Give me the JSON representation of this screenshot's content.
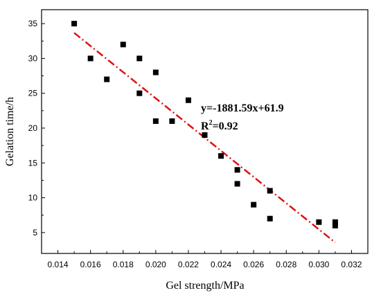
{
  "chart_data": {
    "type": "scatter",
    "xlabel": "Gel strength/MPa",
    "ylabel": "Gelation time/h",
    "xlim": [
      0.013,
      0.033
    ],
    "ylim": [
      2,
      37
    ],
    "x_ticks": [
      0.014,
      0.016,
      0.018,
      0.02,
      0.022,
      0.024,
      0.026,
      0.028,
      0.03,
      0.032
    ],
    "x_tick_labels": [
      "0.014",
      "0.016",
      "0.018",
      "0.020",
      "0.022",
      "0.024",
      "0.026",
      "0.028",
      "0.030",
      "0.032"
    ],
    "y_ticks": [
      5,
      10,
      15,
      20,
      25,
      30,
      35
    ],
    "y_tick_labels": [
      "5",
      "10",
      "15",
      "20",
      "25",
      "30",
      "35"
    ],
    "grid": false,
    "legend": "none",
    "series": [
      {
        "points": [
          [
            0.015,
            35
          ],
          [
            0.016,
            30
          ],
          [
            0.017,
            27
          ],
          [
            0.018,
            32
          ],
          [
            0.019,
            30
          ],
          [
            0.019,
            25
          ],
          [
            0.02,
            28
          ],
          [
            0.02,
            21
          ],
          [
            0.021,
            21
          ],
          [
            0.022,
            24
          ],
          [
            0.023,
            19
          ],
          [
            0.024,
            16
          ],
          [
            0.025,
            14
          ],
          [
            0.025,
            12
          ],
          [
            0.026,
            9
          ],
          [
            0.027,
            11
          ],
          [
            0.027,
            7
          ],
          [
            0.03,
            6.5
          ],
          [
            0.031,
            6.5
          ],
          [
            0.031,
            6
          ]
        ],
        "marker": "square",
        "color": "#000000"
      }
    ],
    "fit_line": {
      "slope": -1881.59,
      "intercept": 61.9,
      "x_range": [
        0.015,
        0.031
      ],
      "style": "dash-dot",
      "color": "#dd1111"
    },
    "annotations": {
      "equation": "y=-1881.59x+61.9",
      "r2_prefix": "R",
      "r2_sup": "2",
      "r2_value": "=0.92"
    }
  }
}
